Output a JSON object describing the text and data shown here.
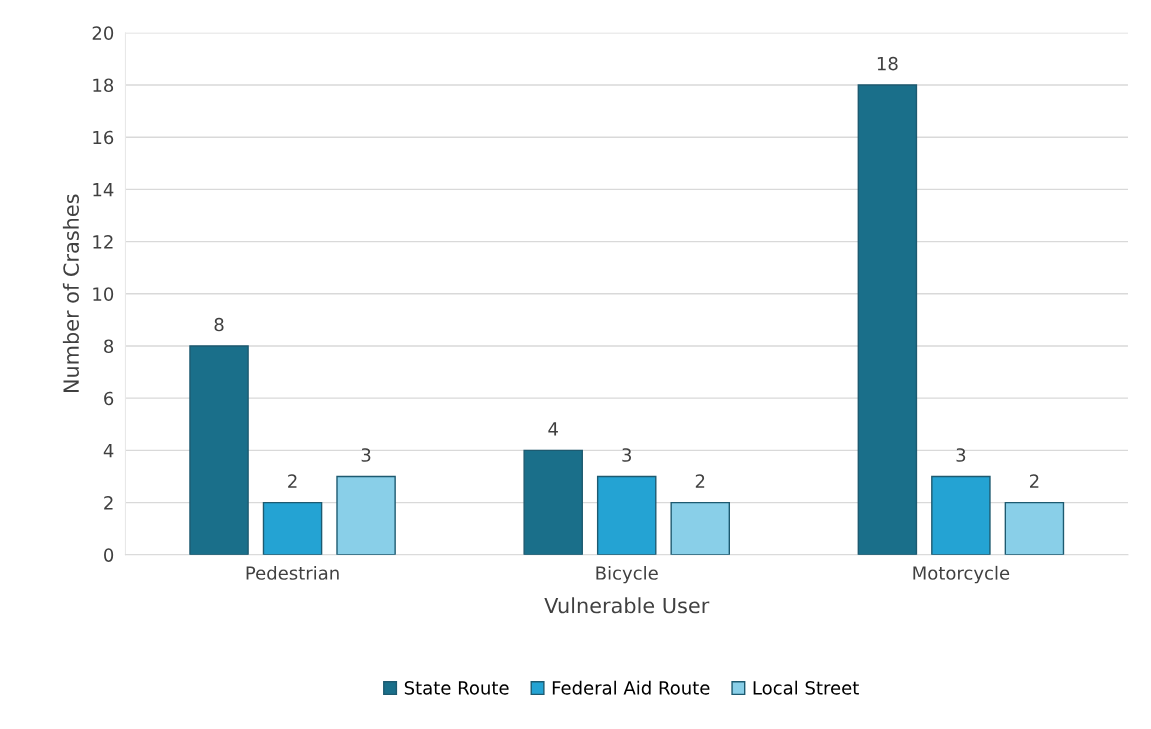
{
  "chart_data": {
    "type": "bar",
    "xlabel": "Vulnerable User",
    "ylabel": "Number of Crashes",
    "categories": [
      "Pedestrian",
      "Bicycle",
      "Motorcycle"
    ],
    "series": [
      {
        "name": "State Route",
        "color": "#1a6f8a",
        "values": [
          8,
          4,
          18
        ]
      },
      {
        "name": "Federal Aid Route",
        "color": "#24a3d3",
        "values": [
          2,
          3,
          3
        ]
      },
      {
        "name": "Local Street",
        "color": "#89cfe8",
        "values": [
          3,
          2,
          2
        ]
      }
    ],
    "ylim": [
      0,
      20
    ],
    "yticks": [
      0,
      2,
      4,
      6,
      8,
      10,
      12,
      14,
      16,
      18,
      20
    ],
    "grid": "y",
    "legend": "bottom",
    "data_labels": true
  }
}
